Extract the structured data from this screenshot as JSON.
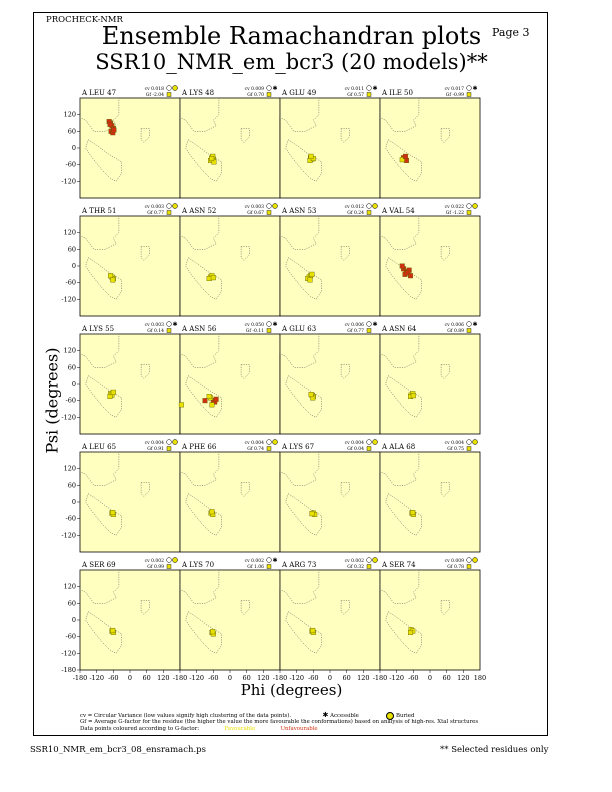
{
  "header": {
    "program": "PROCHECK-NMR",
    "page": "Page  3",
    "title": "Ensemble Ramachandran plots",
    "subtitle": "SSR10_NMR_em_bcr3 (20 models)**"
  },
  "axes": {
    "xlabel": "Phi (degrees)",
    "ylabel": "Psi (degrees)",
    "xticks": [
      "-180",
      "-120",
      "-60",
      "0",
      "60",
      "120",
      "180"
    ],
    "yticks": [
      "120",
      "60",
      "0",
      "-60",
      "-120"
    ],
    "yticks_bottom": [
      "120",
      "60",
      "0",
      "-60",
      "-120",
      "-180"
    ]
  },
  "legend": {
    "cv_text": "cv = Circular Variance (low values signify high clustering of the data points).",
    "accessible": "Accessible",
    "buried": "Buried",
    "gf_text": "Gf = Average G-factor for the residue (the higher the value the more favourable the conformations) based on analysis of high-res. Xtal structures",
    "colour_text": "Data points coloured according to G-factor:",
    "favourable": "Favourable",
    "unfavourable": "Unfavourable"
  },
  "footer": {
    "file": "SSR10_NMR_em_bcr3_08_ensramach.ps",
    "note": "** Selected residues only"
  },
  "colors": {
    "panel_bg": "#ffffc0",
    "favourable": "#e8e000",
    "unfavourable": "#d03010",
    "point_edge": "#606000"
  },
  "chart_data": {
    "type": "scatter",
    "xlim": [
      -180,
      180
    ],
    "ylim": [
      -180,
      180
    ],
    "panels": [
      {
        "label": "A LEU 47",
        "cv": "cv 0.018",
        "gf": "Gf -2.04",
        "access": "buried",
        "tone": "bad",
        "points": [
          [
            -70,
            90
          ],
          [
            -65,
            80
          ],
          [
            -60,
            70
          ],
          [
            -75,
            95
          ],
          [
            -68,
            60
          ],
          [
            -62,
            55
          ],
          [
            -72,
            85
          ],
          [
            -58,
            65
          ]
        ]
      },
      {
        "label": "A LYS 48",
        "cv": "cv 0.009",
        "gf": "Gf 0.70",
        "access": "accessible",
        "tone": "good",
        "points": [
          [
            -65,
            -35
          ],
          [
            -60,
            -40
          ],
          [
            -70,
            -45
          ],
          [
            -62,
            -30
          ],
          [
            -58,
            -50
          ],
          [
            -66,
            -38
          ]
        ]
      },
      {
        "label": "A GLU 49",
        "cv": "cv 0.011",
        "gf": "Gf 0.57",
        "access": "accessible",
        "tone": "good",
        "points": [
          [
            -70,
            -35
          ],
          [
            -65,
            -40
          ],
          [
            -72,
            -45
          ],
          [
            -60,
            -38
          ],
          [
            -68,
            -30
          ]
        ]
      },
      {
        "label": "A ILE 50",
        "cv": "cv 0.017",
        "gf": "Gf -0.99",
        "access": "accessible",
        "tone": "mix",
        "points": [
          [
            -95,
            -35
          ],
          [
            -90,
            -40
          ],
          [
            -85,
            -45
          ],
          [
            -100,
            -42
          ],
          [
            -88,
            -30
          ]
        ]
      },
      {
        "label": "A THR 51",
        "cv": "cv 0.003",
        "gf": "Gf 0.77",
        "access": "buried",
        "tone": "good",
        "points": [
          [
            -65,
            -40
          ],
          [
            -60,
            -45
          ],
          [
            -70,
            -35
          ],
          [
            -62,
            -50
          ]
        ]
      },
      {
        "label": "A ASN 52",
        "cv": "cv 0.003",
        "gf": "Gf 0.67",
        "access": "buried",
        "tone": "good",
        "points": [
          [
            -70,
            -40
          ],
          [
            -65,
            -35
          ],
          [
            -75,
            -45
          ],
          [
            -60,
            -42
          ]
        ]
      },
      {
        "label": "A ASN 53",
        "cv": "cv 0.012",
        "gf": "Gf 0.24",
        "access": "buried",
        "tone": "good",
        "points": [
          [
            -75,
            -40
          ],
          [
            -70,
            -35
          ],
          [
            -80,
            -45
          ],
          [
            -65,
            -30
          ],
          [
            -72,
            -50
          ]
        ]
      },
      {
        "label": "A VAL 54",
        "cv": "cv 0.022",
        "gf": "Gf -1.22",
        "access": "buried",
        "tone": "bad",
        "points": [
          [
            -95,
            -10
          ],
          [
            -85,
            -20
          ],
          [
            -75,
            -15
          ],
          [
            -90,
            -30
          ],
          [
            -80,
            -25
          ],
          [
            -100,
            0
          ],
          [
            -70,
            -35
          ]
        ]
      },
      {
        "label": "A LYS 55",
        "cv": "cv 0.003",
        "gf": "Gf 0.14",
        "access": "accessible",
        "tone": "good",
        "points": [
          [
            -70,
            -35
          ],
          [
            -65,
            -40
          ],
          [
            -72,
            -45
          ],
          [
            -60,
            -30
          ]
        ]
      },
      {
        "label": "A ASN 56",
        "cv": "cv 0.050",
        "gf": "Gf -0.11",
        "access": "accessible",
        "tone": "mix",
        "points": [
          [
            -60,
            -60
          ],
          [
            -70,
            -50
          ],
          [
            -55,
            -65
          ],
          [
            -75,
            -45
          ],
          [
            -50,
            -55
          ],
          [
            -65,
            -75
          ],
          [
            -90,
            -60
          ],
          [
            -175,
            -75
          ]
        ]
      },
      {
        "label": "A GLU 63",
        "cv": "cv 0.006",
        "gf": "Gf 0.77",
        "access": "accessible",
        "tone": "good",
        "points": [
          [
            -65,
            -40
          ],
          [
            -60,
            -45
          ],
          [
            -62,
            -50
          ],
          [
            -68,
            -38
          ]
        ]
      },
      {
        "label": "A ASN 64",
        "cv": "cv 0.006",
        "gf": "Gf 0.89",
        "access": "accessible",
        "tone": "good",
        "points": [
          [
            -68,
            -40
          ],
          [
            -62,
            -35
          ],
          [
            -70,
            -45
          ],
          [
            -60,
            -42
          ]
        ]
      },
      {
        "label": "A LEU 65",
        "cv": "cv 0.004",
        "gf": "Gf 0.91",
        "access": "buried",
        "tone": "good",
        "points": [
          [
            -65,
            -40
          ],
          [
            -60,
            -45
          ],
          [
            -62,
            -38
          ]
        ]
      },
      {
        "label": "A PHE 66",
        "cv": "cv 0.004",
        "gf": "Gf 0.74",
        "access": "buried",
        "tone": "good",
        "points": [
          [
            -68,
            -40
          ],
          [
            -62,
            -45
          ],
          [
            -65,
            -35
          ]
        ]
      },
      {
        "label": "A LYS 67",
        "cv": "cv 0.004",
        "gf": "Gf 0.04",
        "access": "buried",
        "tone": "good",
        "points": [
          [
            -60,
            -40
          ],
          [
            -55,
            -45
          ],
          [
            -65,
            -42
          ]
        ]
      },
      {
        "label": "A ALA 68",
        "cv": "cv 0.004",
        "gf": "Gf 0.75",
        "access": "buried",
        "tone": "good",
        "points": [
          [
            -65,
            -40
          ],
          [
            -60,
            -45
          ],
          [
            -62,
            -38
          ]
        ]
      },
      {
        "label": "A SER 69",
        "cv": "cv 0.002",
        "gf": "Gf 0.99",
        "access": "buried",
        "tone": "good",
        "points": [
          [
            -65,
            -40
          ],
          [
            -60,
            -45
          ],
          [
            -62,
            -38
          ]
        ]
      },
      {
        "label": "A LYS 70",
        "cv": "cv 0.002",
        "gf": "Gf 1.06",
        "access": "accessible",
        "tone": "good",
        "points": [
          [
            -65,
            -45
          ],
          [
            -60,
            -50
          ],
          [
            -62,
            -42
          ]
        ]
      },
      {
        "label": "A ARG 73",
        "cv": "cv 0.002",
        "gf": "Gf 0.32",
        "access": "buried",
        "tone": "good",
        "points": [
          [
            -65,
            -40
          ],
          [
            -60,
            -45
          ],
          [
            -62,
            -38
          ]
        ]
      },
      {
        "label": "A SER 74",
        "cv": "cv 0.009",
        "gf": "Gf 0.78",
        "access": "buried",
        "tone": "good",
        "points": [
          [
            -68,
            -35
          ],
          [
            -62,
            -40
          ],
          [
            -70,
            -45
          ]
        ]
      }
    ]
  }
}
